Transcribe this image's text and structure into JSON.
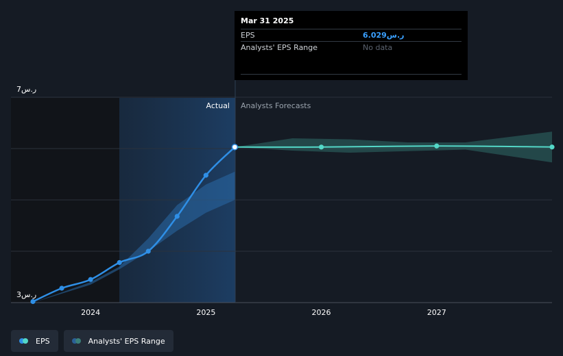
{
  "chart_data": {
    "type": "line",
    "y_axis": {
      "ylim": [
        3,
        7
      ],
      "tick_labels": [
        "ر.س7",
        "ر.س3"
      ],
      "gridlines": [
        7,
        6,
        5,
        4
      ]
    },
    "x_axis": {
      "ticks": [
        2024,
        2025,
        2026,
        2027
      ],
      "tick_labels": [
        "2024",
        "2025",
        "2026",
        "2027"
      ],
      "xlim": [
        2023.5,
        2028.0
      ]
    },
    "region_labels": {
      "actual": "Actual",
      "forecast": "Analysts Forecasts"
    },
    "forecast_start": 2025.25,
    "series": [
      {
        "name": "EPS",
        "color": "#2f8fe6",
        "points": [
          {
            "x": 2023.5,
            "y": 3.02
          },
          {
            "x": 2023.75,
            "y": 3.28
          },
          {
            "x": 2024.0,
            "y": 3.45
          },
          {
            "x": 2024.25,
            "y": 3.78
          },
          {
            "x": 2024.5,
            "y": 4.0
          },
          {
            "x": 2024.75,
            "y": 4.68
          },
          {
            "x": 2025.0,
            "y": 5.48
          },
          {
            "x": 2025.25,
            "y": 6.029
          }
        ]
      },
      {
        "name": "EPS Forecast",
        "color": "#54d8c8",
        "points": [
          {
            "x": 2025.25,
            "y": 6.029
          },
          {
            "x": 2026.0,
            "y": 6.029
          },
          {
            "x": 2027.0,
            "y": 6.05
          },
          {
            "x": 2028.0,
            "y": 6.03
          }
        ]
      }
    ],
    "range_band": {
      "name": "Analysts' EPS Range",
      "color": "#3a7f7a",
      "upper": [
        [
          2025.25,
          6.03
        ],
        [
          2025.75,
          6.2
        ],
        [
          2026.25,
          6.18
        ],
        [
          2026.75,
          6.12
        ],
        [
          2027.25,
          6.12
        ],
        [
          2028.0,
          6.33
        ]
      ],
      "lower": [
        [
          2025.25,
          6.03
        ],
        [
          2025.75,
          5.96
        ],
        [
          2026.25,
          5.92
        ],
        [
          2026.75,
          5.95
        ],
        [
          2027.25,
          5.98
        ],
        [
          2028.0,
          5.73
        ]
      ]
    },
    "historic_band": {
      "color": "#2a5f96",
      "upper": [
        [
          2023.5,
          3.0
        ],
        [
          2024.0,
          3.4
        ],
        [
          2024.25,
          3.7
        ],
        [
          2024.5,
          4.25
        ],
        [
          2024.75,
          4.9
        ],
        [
          2025.0,
          5.3
        ],
        [
          2025.25,
          5.55
        ]
      ],
      "lower": [
        [
          2023.5,
          3.0
        ],
        [
          2024.0,
          3.35
        ],
        [
          2024.25,
          3.65
        ],
        [
          2024.5,
          4.0
        ],
        [
          2024.75,
          4.4
        ],
        [
          2025.0,
          4.75
        ],
        [
          2025.25,
          5.0
        ]
      ]
    },
    "legend": {
      "placement": "bottom-left",
      "items": [
        "EPS",
        "Analysts' EPS Range"
      ]
    }
  },
  "tooltip": {
    "date": "Mar 31 2025",
    "rows": [
      {
        "label": "EPS",
        "value": "ر.س6.029"
      },
      {
        "label": "Analysts' EPS Range",
        "value": "No data"
      }
    ]
  },
  "legend_items": [
    {
      "label": "EPS",
      "colors": [
        "#2f8fe6",
        "#54d8c8"
      ]
    },
    {
      "label": "Analysts' EPS Range",
      "colors": [
        "#2a5f96",
        "#3a7f7a"
      ]
    }
  ]
}
